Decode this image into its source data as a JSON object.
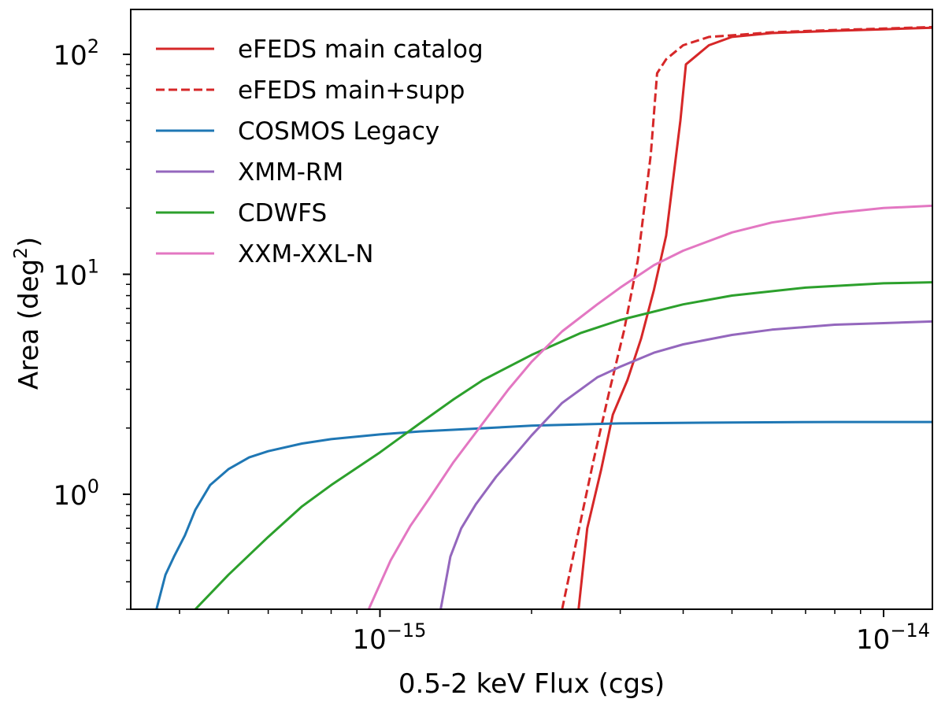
{
  "chart_data": {
    "type": "line",
    "xscale": "log",
    "yscale": "log",
    "xlabel": "0.5-2 keV Flux (cgs)",
    "ylabel_main": "Area (deg",
    "ylabel_sup": "2",
    "ylabel_close": ")",
    "xlim": [
      3.2e-16,
      1.25e-14
    ],
    "ylim": [
      0.3,
      160
    ],
    "legend_position": "top-left",
    "xticks": [
      {
        "value": 1e-15,
        "base": "10",
        "exp": "−15"
      },
      {
        "value": 1e-14,
        "base": "10",
        "exp": "−14"
      }
    ],
    "yticks": [
      {
        "value": 1,
        "base": "10",
        "exp": "0"
      },
      {
        "value": 10,
        "base": "10",
        "exp": "1"
      },
      {
        "value": 100,
        "base": "10",
        "exp": "2"
      }
    ],
    "series": [
      {
        "name": "eFEDS main catalog",
        "color": "#d62728",
        "dash": "solid",
        "x": [
          2.48e-15,
          2.58e-15,
          2.75e-15,
          2.9e-15,
          3.1e-15,
          3.3e-15,
          3.5e-15,
          3.7e-15,
          3.95e-15,
          4.05e-15,
          4.5e-15,
          5e-15,
          6e-15,
          8e-15,
          1e-14,
          1.25e-14
        ],
        "y": [
          0.3,
          0.7,
          1.3,
          2.3,
          3.3,
          5.1,
          8.5,
          15,
          50,
          90,
          110,
          120,
          125,
          128,
          130,
          132
        ]
      },
      {
        "name": "eFEDS main+supp",
        "color": "#d62728",
        "dash": "dashed",
        "x": [
          2.3e-15,
          2.45e-15,
          2.65e-15,
          2.85e-15,
          3.05e-15,
          3.25e-15,
          3.45e-15,
          3.55e-15,
          3.7e-15,
          4e-15,
          4.5e-15,
          5e-15,
          6e-15,
          8e-15,
          1e-14,
          1.25e-14
        ],
        "y": [
          0.3,
          0.6,
          1.4,
          2.9,
          5.5,
          11.5,
          35,
          82,
          95,
          110,
          120,
          122,
          126,
          129,
          131,
          133
        ]
      },
      {
        "name": "COSMOS Legacy",
        "color": "#1f77b4",
        "dash": "solid",
        "x": [
          3.6e-16,
          3.75e-16,
          3.9e-16,
          4.1e-16,
          4.3e-16,
          4.6e-16,
          5e-16,
          5.5e-16,
          6e-16,
          7e-16,
          8e-16,
          1e-15,
          1.2e-15,
          1.5e-15,
          2e-15,
          3e-15,
          5e-15,
          8e-15,
          1.25e-14
        ],
        "y": [
          0.3,
          0.43,
          0.52,
          0.65,
          0.85,
          1.1,
          1.3,
          1.47,
          1.57,
          1.7,
          1.78,
          1.87,
          1.93,
          1.98,
          2.05,
          2.1,
          2.12,
          2.13,
          2.13
        ]
      },
      {
        "name": "XMM-RM",
        "color": "#9467bd",
        "dash": "solid",
        "x": [
          1.32e-15,
          1.38e-15,
          1.45e-15,
          1.55e-15,
          1.7e-15,
          1.85e-15,
          2e-15,
          2.3e-15,
          2.7e-15,
          3e-15,
          3.5e-15,
          4e-15,
          5e-15,
          6e-15,
          8e-15,
          1e-14,
          1.25e-14
        ],
        "y": [
          0.3,
          0.52,
          0.7,
          0.9,
          1.2,
          1.5,
          1.85,
          2.6,
          3.4,
          3.8,
          4.4,
          4.8,
          5.3,
          5.6,
          5.9,
          6.0,
          6.1
        ]
      },
      {
        "name": "CDWFS",
        "color": "#2ca02c",
        "dash": "solid",
        "x": [
          4.3e-16,
          5e-16,
          6e-16,
          7e-16,
          8e-16,
          1e-15,
          1.2e-15,
          1.4e-15,
          1.6e-15,
          2e-15,
          2.5e-15,
          3e-15,
          4e-15,
          5e-15,
          7e-15,
          1e-14,
          1.25e-14
        ],
        "y": [
          0.3,
          0.43,
          0.64,
          0.88,
          1.1,
          1.55,
          2.1,
          2.7,
          3.3,
          4.3,
          5.4,
          6.2,
          7.3,
          8.0,
          8.7,
          9.1,
          9.2
        ]
      },
      {
        "name": "XXM-XXL-N",
        "color": "#e377c2",
        "dash": "solid",
        "x": [
          9.5e-16,
          1.05e-15,
          1.15e-15,
          1.25e-15,
          1.4e-15,
          1.6e-15,
          1.8e-15,
          2e-15,
          2.3e-15,
          2.7e-15,
          3e-15,
          3.5e-15,
          4e-15,
          5e-15,
          6e-15,
          8e-15,
          1e-14,
          1.25e-14
        ],
        "y": [
          0.3,
          0.5,
          0.72,
          0.95,
          1.4,
          2.1,
          3.0,
          4.0,
          5.5,
          7.3,
          8.7,
          11,
          12.8,
          15.5,
          17.2,
          19.0,
          20.0,
          20.5
        ]
      }
    ]
  }
}
